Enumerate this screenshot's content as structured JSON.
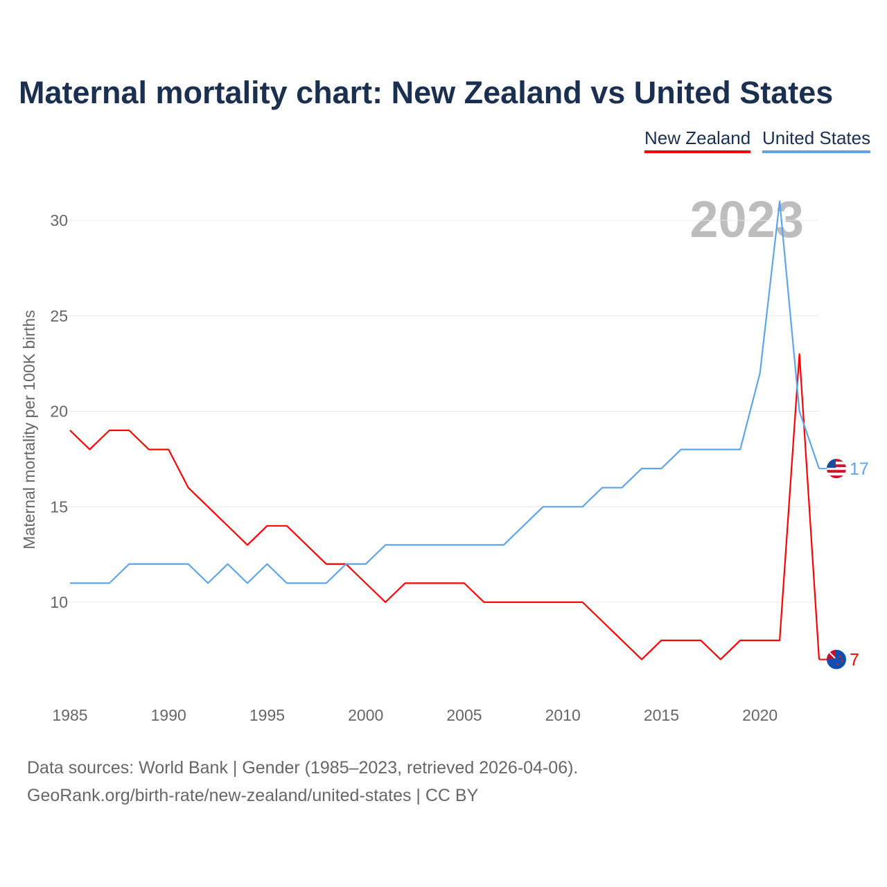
{
  "title": "Maternal mortality chart: New Zealand vs United States",
  "legend": [
    "New Zealand",
    "United States"
  ],
  "source_line1": "Data sources: World Bank | Gender (1985–2023, retrieved 2026-04-06).",
  "source_line2": "GeoRank.org/birth-rate/new-zealand/united-states | CC BY",
  "chart_data": {
    "type": "line",
    "title": "Maternal mortality chart: New Zealand vs United States",
    "ylabel": "Maternal mortality per 100K births",
    "xlabel": "",
    "year_watermark": "2023",
    "xlim": [
      1985,
      2023
    ],
    "ylim": [
      5.5,
      31
    ],
    "xticks": [
      1985,
      1990,
      1995,
      2000,
      2005,
      2010,
      2015,
      2020
    ],
    "yticks": [
      10,
      15,
      20,
      25,
      30
    ],
    "grid": true,
    "legend_position": "top-right",
    "x": [
      1985,
      1986,
      1987,
      1988,
      1989,
      1990,
      1991,
      1992,
      1993,
      1994,
      1995,
      1996,
      1997,
      1998,
      1999,
      2000,
      2001,
      2002,
      2003,
      2004,
      2005,
      2006,
      2007,
      2008,
      2009,
      2010,
      2011,
      2012,
      2013,
      2014,
      2015,
      2016,
      2017,
      2018,
      2019,
      2020,
      2021,
      2022,
      2023
    ],
    "series": [
      {
        "name": "New Zealand",
        "color": "#ff0000",
        "end_label": "7",
        "values": [
          19,
          18,
          19,
          19,
          18,
          18,
          16,
          15,
          14,
          13,
          14,
          14,
          13,
          12,
          12,
          11,
          10,
          11,
          11,
          11,
          11,
          10,
          10,
          10,
          10,
          10,
          10,
          9,
          8,
          7,
          8,
          8,
          8,
          7,
          8,
          8,
          8,
          23,
          7
        ]
      },
      {
        "name": "United States",
        "color": "#5ea4e8",
        "end_label": "17",
        "values": [
          11,
          11,
          11,
          12,
          12,
          12,
          12,
          11,
          12,
          11,
          12,
          11,
          11,
          11,
          12,
          12,
          13,
          13,
          13,
          13,
          13,
          13,
          13,
          14,
          15,
          15,
          15,
          16,
          16,
          17,
          17,
          18,
          18,
          18,
          18,
          22,
          31,
          20,
          17
        ]
      }
    ]
  }
}
